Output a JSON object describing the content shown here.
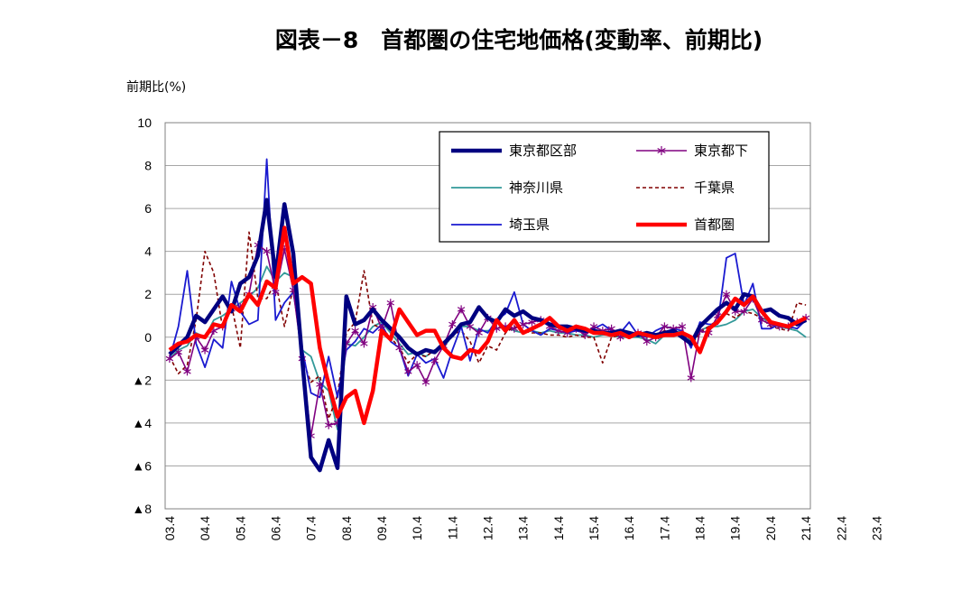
{
  "chart_data": {
    "type": "line",
    "title": "図表－8　首都圏の住宅地価格(変動率、前期比)",
    "ylabel": "前期比(%)",
    "xlabel": "",
    "ylim": [
      -8,
      10
    ],
    "ytick_values": [
      10,
      8,
      6,
      4,
      2,
      0,
      -2,
      -4,
      -6,
      -8
    ],
    "ytick_labels": [
      "10",
      "8",
      "6",
      "4",
      "2",
      "0",
      "▲2",
      "▲4",
      "▲6",
      "▲8"
    ],
    "grid": "horizontal",
    "legend_position": "top-right",
    "x_period": "quarterly, 2003 Q2 to 2024 Q2",
    "x_labels": [
      "03.4",
      "04.4",
      "05.4",
      "06.4",
      "07.4",
      "08.4",
      "09.4",
      "10.4",
      "11.4",
      "12.4",
      "13.4",
      "14.4",
      "15.4",
      "16.4",
      "17.4",
      "18.4",
      "19.4",
      "20.4",
      "21.4",
      "22.4",
      "23.4"
    ],
    "series": [
      {
        "name": "東京都区部",
        "color": "#000080",
        "style": "thick",
        "values": [
          -0.8,
          -0.4,
          0.0,
          1.0,
          0.7,
          1.3,
          1.9,
          1.2,
          2.5,
          2.8,
          3.8,
          6.4,
          2.8,
          6.2,
          3.9,
          -1.0,
          -5.6,
          -6.2,
          -4.8,
          -6.1,
          1.9,
          0.6,
          0.8,
          1.3,
          0.8,
          0.4,
          0.0,
          -0.5,
          -0.8,
          -0.6,
          -0.7,
          -0.3,
          0.1,
          0.6,
          0.7,
          1.4,
          0.9,
          0.7,
          1.3,
          1.0,
          1.2,
          0.9,
          0.8,
          0.6,
          0.5,
          0.5,
          0.4,
          0.3,
          0.3,
          0.2,
          0.2,
          0.3,
          0.2,
          0.1,
          0.2,
          0.1,
          0.2,
          0.3,
          0.0,
          -0.3,
          0.5,
          0.9,
          1.3,
          1.6,
          1.3,
          2.0,
          1.9,
          1.2,
          1.3,
          1.0,
          0.9,
          0.6,
          0.8
        ]
      },
      {
        "name": "東京都下",
        "color": "#800080",
        "style": "star",
        "values": [
          -1.0,
          -0.7,
          -1.6,
          0.0,
          -0.6,
          0.3,
          0.5,
          1.3,
          1.4,
          2.0,
          4.3,
          4.0,
          2.1,
          4.1,
          2.2,
          -1.0,
          -4.6,
          -2.2,
          -4.1,
          -4.0,
          -0.3,
          0.3,
          -0.3,
          1.4,
          0.4,
          1.6,
          -0.5,
          -1.6,
          -1.3,
          -2.1,
          -1.1,
          -0.4,
          0.6,
          1.3,
          0.5,
          0.2,
          0.9,
          0.4,
          0.5,
          0.4,
          0.6,
          0.7,
          0.8,
          0.5,
          0.3,
          0.2,
          0.4,
          0.1,
          0.5,
          0.3,
          0.4,
          0.0,
          0.1,
          0.2,
          -0.2,
          0.0,
          0.5,
          0.4,
          0.5,
          -1.9,
          0.3,
          0.2,
          1.0,
          2.0,
          1.2,
          1.2,
          1.8,
          0.8,
          0.6,
          0.5,
          0.5,
          0.7,
          0.9
        ]
      },
      {
        "name": "神奈川県",
        "color": "#339999",
        "style": "solid",
        "values": [
          -1.0,
          -0.6,
          -0.4,
          0.2,
          0.0,
          0.8,
          1.0,
          1.3,
          1.6,
          1.9,
          2.3,
          3.3,
          2.6,
          3.0,
          2.8,
          -0.6,
          -0.9,
          -2.1,
          -2.5,
          -4.3,
          -0.3,
          -0.4,
          0.0,
          0.5,
          0.7,
          0.2,
          -0.3,
          -0.8,
          -0.7,
          -0.9,
          -0.6,
          -0.5,
          0.1,
          0.5,
          0.5,
          0.3,
          0.3,
          0.4,
          0.5,
          0.3,
          0.2,
          0.3,
          0.2,
          0.3,
          0.2,
          0.2,
          0.1,
          0.1,
          0.0,
          0.1,
          0.1,
          0.0,
          0.0,
          0.0,
          -0.1,
          -0.3,
          0.1,
          0.2,
          0.3,
          -0.2,
          0.3,
          0.5,
          0.5,
          0.6,
          0.8,
          1.2,
          1.3,
          0.9,
          0.7,
          0.5,
          0.4,
          0.3,
          0.0
        ]
      },
      {
        "name": "千葉県",
        "color": "#800000",
        "style": "dashed",
        "values": [
          -0.9,
          -1.7,
          -1.3,
          0.8,
          4.0,
          3.0,
          0.4,
          1.5,
          -0.5,
          4.9,
          1.8,
          1.8,
          2.6,
          0.5,
          2.3,
          -1.0,
          -2.1,
          -1.8,
          -3.8,
          -2.7,
          0.2,
          0.7,
          3.1,
          0.6,
          0.4,
          0.0,
          -0.5,
          -1.2,
          -0.8,
          -0.9,
          -0.6,
          -0.5,
          0.1,
          0.3,
          -0.2,
          -1.2,
          -0.4,
          -0.6,
          0.2,
          0.5,
          0.3,
          0.2,
          0.2,
          0.1,
          0.1,
          0.0,
          0.1,
          0.0,
          0.0,
          -1.2,
          0.0,
          0.1,
          0.0,
          0.1,
          0.0,
          0.1,
          0.3,
          0.2,
          0.0,
          -0.4,
          0.2,
          0.5,
          0.8,
          1.1,
          0.9,
          1.2,
          1.1,
          0.9,
          0.5,
          0.4,
          0.3,
          1.6,
          1.5
        ]
      },
      {
        "name": "埼玉県",
        "color": "#1a1ad0",
        "style": "solid",
        "values": [
          -1.0,
          0.5,
          3.1,
          -0.3,
          -1.4,
          -0.1,
          -0.5,
          2.6,
          1.2,
          0.6,
          0.8,
          8.3,
          0.8,
          1.6,
          2.1,
          -0.5,
          -2.6,
          -2.8,
          -0.9,
          -2.8,
          -0.6,
          -0.2,
          0.4,
          0.2,
          0.6,
          -0.2,
          -0.5,
          -1.8,
          -0.8,
          -1.2,
          -1.0,
          -1.9,
          -0.6,
          0.5,
          -1.1,
          0.4,
          0.2,
          0.8,
          1.1,
          2.1,
          0.6,
          0.3,
          0.1,
          0.4,
          0.3,
          0.2,
          0.3,
          0.2,
          0.4,
          0.6,
          0.3,
          0.2,
          0.7,
          0.1,
          0.0,
          0.3,
          0.5,
          0.4,
          0.3,
          -0.5,
          0.7,
          0.6,
          0.6,
          3.7,
          3.9,
          1.5,
          2.5,
          0.4,
          0.4,
          0.6,
          0.5,
          0.4,
          0.8
        ]
      },
      {
        "name": "首都圏",
        "color": "#ff0000",
        "style": "thick",
        "values": [
          -0.6,
          -0.3,
          -0.2,
          0.1,
          0.0,
          0.6,
          0.5,
          1.5,
          1.2,
          2.0,
          1.5,
          2.6,
          2.3,
          5.1,
          2.5,
          2.8,
          2.5,
          -0.5,
          -2.2,
          -3.7,
          -2.8,
          -2.5,
          -4.0,
          -2.5,
          0.3,
          -0.1,
          1.3,
          0.7,
          0.1,
          0.3,
          0.3,
          -0.5,
          -0.9,
          -1.0,
          -0.6,
          -0.7,
          -0.2,
          0.8,
          0.3,
          0.8,
          0.2,
          0.4,
          0.6,
          0.9,
          0.5,
          0.3,
          0.5,
          0.4,
          0.2,
          0.2,
          0.1,
          0.2,
          0.0,
          0.2,
          0.1,
          0.0,
          0.1,
          0.1,
          0.2,
          0.0,
          -0.7,
          0.4,
          0.7,
          1.2,
          1.8,
          1.5,
          1.9,
          1.2,
          0.7,
          0.6,
          0.5,
          0.7,
          0.9
        ]
      }
    ]
  }
}
